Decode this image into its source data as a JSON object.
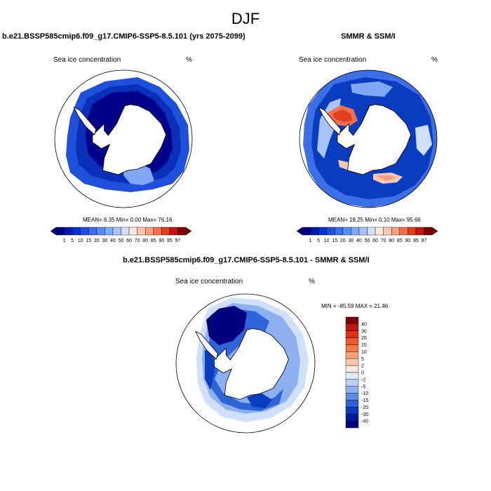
{
  "title": "DJF",
  "panels": [
    {
      "title": "b.e21.BSSP585cmip6.f09_g17.CMIP6-SSP5-8.5.101 (yrs 2075-2099)",
      "left_label": "Sea ice concentration",
      "right_label": "%",
      "stats": "MEAN=  6.35  Min=   0.00  Max=  76.16"
    },
    {
      "title": "SMMR & SSM/I",
      "left_label": "Sea ice concentration",
      "right_label": "%",
      "stats": "MEAN=  18.25  Min=   0.10  Max=  95.66"
    },
    {
      "title": "b.e21.BSSP585cmip6.f09_g17.CMIP6-SSP5-8.5.101 - SMMR & SSM/I",
      "left_label": "Sea ice concentration",
      "right_label": "%",
      "stats": "MIN = -85.59 MAX =  21.46"
    }
  ],
  "colorbar_conc": {
    "labels": [
      "1",
      "5",
      "10",
      "15",
      "20",
      "30",
      "40",
      "50",
      "60",
      "70",
      "80",
      "85",
      "90",
      "95",
      "97"
    ],
    "colors": [
      "#00007f",
      "#0019a8",
      "#0033cc",
      "#1e50dc",
      "#3c6ee6",
      "#5a8cf0",
      "#80a8f4",
      "#a8c4f8",
      "#d0e0fb",
      "#fbe8dc",
      "#f8c8b0",
      "#f4a080",
      "#f07050",
      "#e04020",
      "#c01810",
      "#800000"
    ]
  },
  "colorbar_diff": {
    "labels": [
      "40",
      "30",
      "20",
      "15",
      "10",
      "5",
      "2",
      "0",
      "-2",
      "-5",
      "-10",
      "-15",
      "-20",
      "-30",
      "-40"
    ],
    "colors": [
      "#800000",
      "#c01810",
      "#e03010",
      "#f05a28",
      "#f47a48",
      "#f8a070",
      "#fac8a8",
      "#fde8dc",
      "#e0ecfb",
      "#b8d0f6",
      "#8cb0f0",
      "#5a8ce6",
      "#2e64d8",
      "#0a3cc0",
      "#001c9c",
      "#00007f"
    ]
  }
}
